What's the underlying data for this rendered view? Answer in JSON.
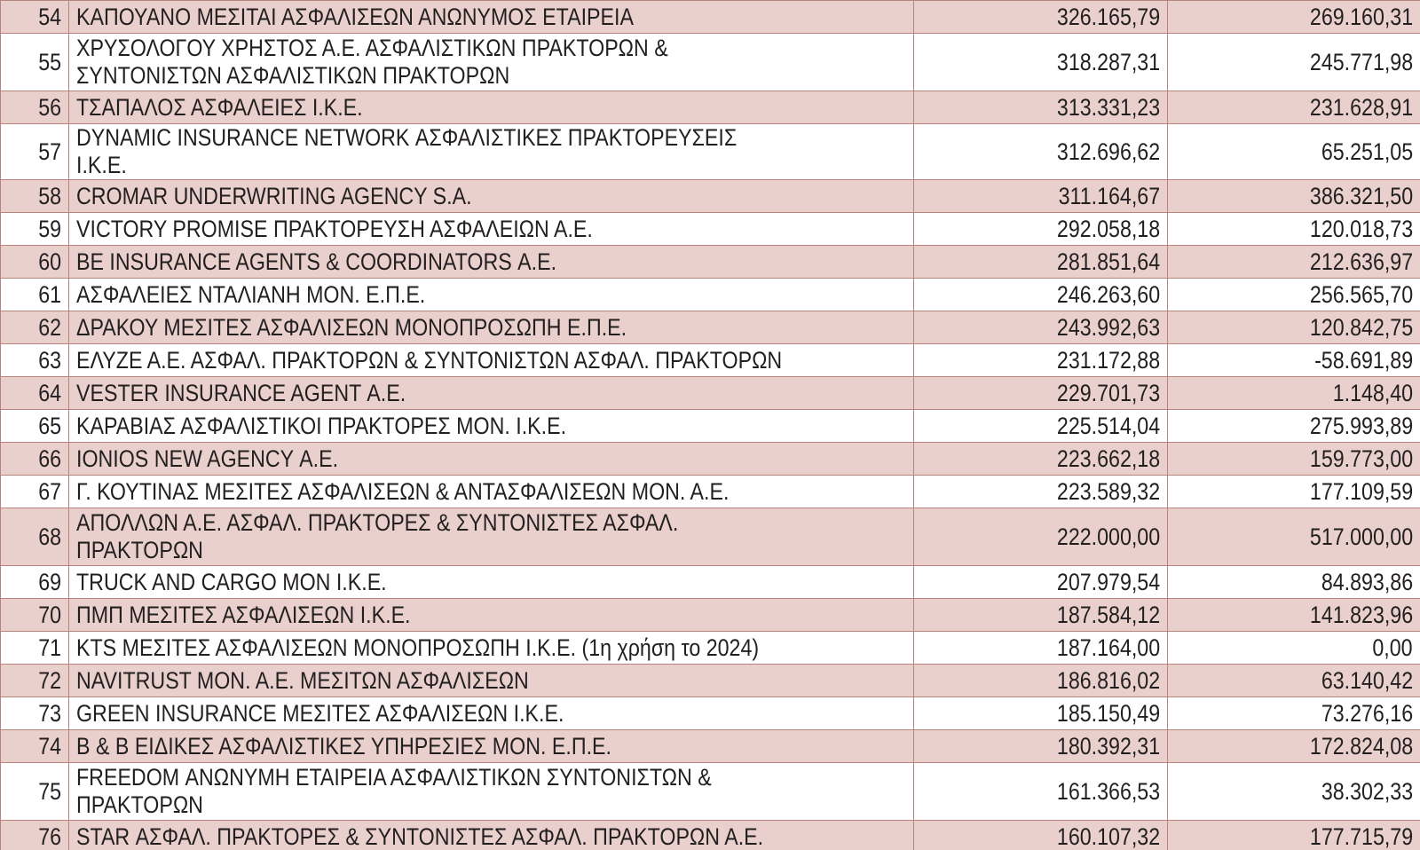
{
  "table": {
    "rows": [
      [
        "54",
        "ΚΑΠΟΥΑΝΟ ΜΕΣΙΤΑΙ ΑΣΦΑΛΙΣΕΩΝ ΑΝΩΝΥΜΟΣ ΕΤΑΙΡΕΙΑ",
        "326.165,79",
        "269.160,31"
      ],
      [
        "55",
        "ΧΡΥΣΟΛΟΓΟΥ ΧΡΗΣΤΟΣ Α.Ε. ΑΣΦΑΛΙΣΤΙΚΩΝ ΠΡΑΚΤΟΡΩΝ &\nΣΥΝΤΟΝΙΣΤΩΝ ΑΣΦΑΛΙΣΤΙΚΩΝ ΠΡΑΚΤΟΡΩΝ",
        "318.287,31",
        "245.771,98"
      ],
      [
        "56",
        "ΤΣΑΠΑΛΟΣ ΑΣΦΑΛΕΙΕΣ Ι.Κ.Ε.",
        "313.331,23",
        "231.628,91"
      ],
      [
        "57",
        "DYNAMIC INSURANCE NETWORK ΑΣΦΑΛΙΣΤΙΚΕΣ ΠΡΑΚΤΟΡΕΥΣΕΙΣ Ι.Κ.Ε.",
        "312.696,62",
        "65.251,05"
      ],
      [
        "58",
        "CROMAR UNDERWRITING AGENCY S.A.",
        "311.164,67",
        "386.321,50"
      ],
      [
        "59",
        "VICTORY PROMISE ΠΡΑΚΤΟΡΕΥΣΗ ΑΣΦΑΛΕΙΩΝ Α.Ε.",
        "292.058,18",
        "120.018,73"
      ],
      [
        "60",
        "BE INSURANCE AGENTS & COORDINATORS Α.Ε.",
        "281.851,64",
        "212.636,97"
      ],
      [
        "61",
        "ΑΣΦΑΛΕΙΕΣ ΝΤΑΛΙΑΝΗ ΜΟΝ. Ε.Π.Ε.",
        "246.263,60",
        "256.565,70"
      ],
      [
        "62",
        "ΔΡΑΚΟΥ ΜΕΣΙΤΕΣ ΑΣΦΑΛΙΣΕΩΝ ΜΟΝΟΠΡΟΣΩΠΗ Ε.Π.Ε.",
        "243.992,63",
        "120.842,75"
      ],
      [
        "63",
        "ΕΛΥΖΕ Α.Ε. ΑΣΦΑΛ. ΠΡΑΚΤΟΡΩΝ & ΣΥΝΤΟΝΙΣΤΩΝ ΑΣΦΑΛ. ΠΡΑΚΤΟΡΩΝ",
        "231.172,88",
        "-58.691,89"
      ],
      [
        "64",
        "VESTER INSURANCE AGENT Α.Ε.",
        "229.701,73",
        "1.148,40"
      ],
      [
        "65",
        "ΚΑΡΑΒΙΑΣ ΑΣΦΑΛΙΣΤΙΚΟΙ ΠΡΑΚΤΟΡΕΣ ΜΟΝ. Ι.Κ.Ε.",
        "225.514,04",
        "275.993,89"
      ],
      [
        "66",
        "IONIOS NEW AGENCY Α.Ε.",
        "223.662,18",
        "159.773,00"
      ],
      [
        "67",
        "Γ. ΚΟΥΤΙΝΑΣ ΜΕΣΙΤΕΣ ΑΣΦΑΛΙΣΕΩΝ & ΑΝΤΑΣΦΑΛΙΣΕΩΝ ΜΟΝ. Α.Ε.",
        "223.589,32",
        "177.109,59"
      ],
      [
        "68",
        "ΑΠΟΛΛΩΝ Α.Ε. ΑΣΦΑΛ. ΠΡΑΚΤΟΡΕΣ & ΣΥΝΤΟΝΙΣΤΕΣ ΑΣΦΑΛ.\nΠΡΑΚΤΟΡΩΝ",
        "222.000,00",
        "517.000,00"
      ],
      [
        "69",
        "TRUCK AND CARGO ΜΟΝ Ι.Κ.Ε.",
        "207.979,54",
        "84.893,86"
      ],
      [
        "70",
        "ΠΜΠ ΜΕΣΙΤΕΣ ΑΣΦΑΛΙΣΕΩΝ Ι.Κ.Ε.",
        "187.584,12",
        "141.823,96"
      ],
      [
        "71",
        "KTS ΜΕΣΙΤΕΣ ΑΣΦΑΛΙΣΕΩΝ ΜΟΝΟΠΡΟΣΩΠΗ Ι.Κ.Ε. (1η χρήση το 2024)",
        "187.164,00",
        "0,00"
      ],
      [
        "72",
        "NAVITRUST ΜΟΝ. Α.Ε. ΜΕΣΙΤΩΝ ΑΣΦΑΛΙΣΕΩΝ",
        "186.816,02",
        "63.140,42"
      ],
      [
        "73",
        "GREEN INSURANCE ΜΕΣΙΤΕΣ ΑΣΦΑΛΙΣΕΩΝ Ι.Κ.Ε.",
        "185.150,49",
        "73.276,16"
      ],
      [
        "74",
        "Β & Β ΕΙΔΙΚΕΣ ΑΣΦΑΛΙΣΤΙΚΕΣ ΥΠΗΡΕΣΙΕΣ ΜΟΝ. Ε.Π.Ε.",
        "180.392,31",
        "172.824,08"
      ],
      [
        "75",
        "FREEDOM ΑΝΩΝΥΜΗ ΕΤΑΙΡΕΙΑ ΑΣΦΑΛΙΣΤΙΚΩΝ ΣΥΝΤΟΝΙΣΤΩΝ &\nΠΡΑΚΤΟΡΩΝ",
        "161.366,53",
        "38.302,33"
      ],
      [
        "76",
        "STAR ΑΣΦΑΛ. ΠΡΑΚΤΟΡΕΣ & ΣΥΝΤΟΝΙΣΤΕΣ ΑΣΦΑΛ. ΠΡΑΚΤΟΡΩΝ Α.Ε.",
        "160.107,32",
        "177.715,79"
      ]
    ]
  }
}
